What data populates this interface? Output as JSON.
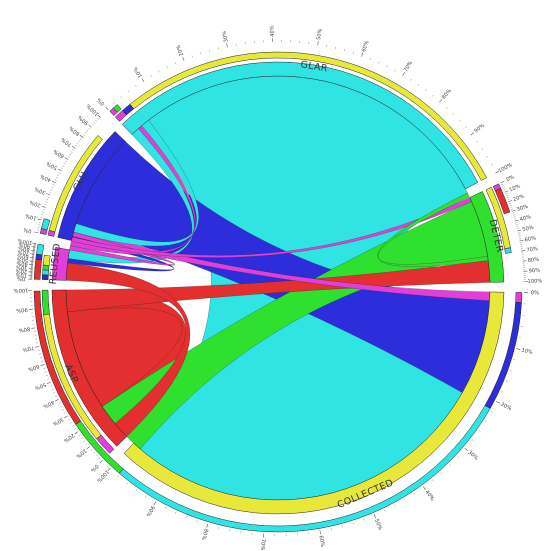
{
  "chart_data": {
    "type": "chord",
    "segments": [
      {
        "name": "REUSED",
        "label": "REUSED",
        "color": "#e23fd8",
        "value": 7
      },
      {
        "name": "GLU",
        "label": "GLU",
        "color": "#2d2ddc",
        "value": 26
      },
      {
        "name": "GLAR",
        "label": "GLAR",
        "color": "#30e4e4",
        "value": 89
      },
      {
        "name": "DETER",
        "label": "DETER",
        "color": "#2fe02f",
        "value": 20
      },
      {
        "name": "COLLECTED",
        "label": "COLLECTED",
        "color": "#e8e83a",
        "value": 111
      },
      {
        "name": "ASP",
        "label": "ASP",
        "color": "#e32f2f",
        "value": 37
      }
    ],
    "flows": [
      {
        "source": "ASP",
        "target": "REUSED",
        "value": 4
      },
      {
        "source": "GLU",
        "target": "REUSED",
        "value": 1
      },
      {
        "source": "GLAR",
        "target": "REUSED",
        "value": 2
      },
      {
        "source": "REUSED",
        "target": "GLU",
        "value": 1
      },
      {
        "source": "REUSED",
        "target": "GLAR",
        "value": 1
      },
      {
        "source": "REUSED",
        "target": "DETER",
        "value": 1
      },
      {
        "source": "REUSED",
        "target": "COLLECTED",
        "value": 2
      },
      {
        "source": "GLAR",
        "target": "GLU",
        "value": 2
      },
      {
        "source": "GLU",
        "target": "COLLECTED",
        "value": 22
      },
      {
        "source": "GLAR",
        "target": "COLLECTED",
        "value": 85
      },
      {
        "source": "DETER",
        "target": "COLLECTED",
        "value": 13
      },
      {
        "source": "DETER",
        "target": "GLAR",
        "value": 1
      },
      {
        "source": "ASP",
        "target": "COLLECTED",
        "value": 28
      },
      {
        "source": "ASP",
        "target": "DETER",
        "value": 5
      }
    ],
    "tick_labels": [
      "0%",
      "10%",
      "20%",
      "30%",
      "40%",
      "50%",
      "60%",
      "70%",
      "80%",
      "90%",
      "100%"
    ],
    "title": "",
    "legend": "none"
  }
}
